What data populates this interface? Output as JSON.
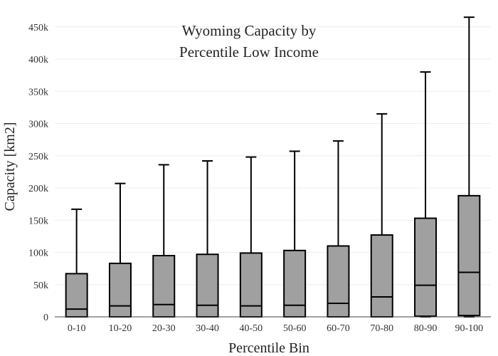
{
  "chart_data": {
    "type": "box",
    "title_lines": [
      "Wyoming Capacity by",
      "Percentile Low Income"
    ],
    "xlabel": "Percentile Bin",
    "ylabel": "Capacity  [km2]",
    "ylim": [
      0,
      465000
    ],
    "yticks": [
      0,
      50000,
      100000,
      150000,
      200000,
      250000,
      300000,
      350000,
      400000,
      450000
    ],
    "ytick_labels": [
      "0",
      "50k",
      "100k",
      "150k",
      "200k",
      "250k",
      "300k",
      "350k",
      "400k",
      "450k"
    ],
    "grid": true,
    "box_color": "#a0a0a0",
    "categories": [
      "0-10",
      "10-20",
      "20-30",
      "30-40",
      "40-50",
      "50-60",
      "60-70",
      "70-80",
      "80-90",
      "90-100"
    ],
    "boxes": [
      {
        "min": 0,
        "q1": 0,
        "median": 12000,
        "q3": 67000,
        "max": 167000
      },
      {
        "min": 0,
        "q1": 0,
        "median": 17000,
        "q3": 83000,
        "max": 207000
      },
      {
        "min": 0,
        "q1": 0,
        "median": 19000,
        "q3": 95000,
        "max": 236000
      },
      {
        "min": 0,
        "q1": 0,
        "median": 18000,
        "q3": 97000,
        "max": 242000
      },
      {
        "min": 0,
        "q1": 0,
        "median": 17000,
        "q3": 99000,
        "max": 248000
      },
      {
        "min": 0,
        "q1": 0,
        "median": 18000,
        "q3": 103000,
        "max": 257000
      },
      {
        "min": 0,
        "q1": 0,
        "median": 21000,
        "q3": 110000,
        "max": 273000
      },
      {
        "min": 0,
        "q1": 0,
        "median": 31000,
        "q3": 127000,
        "max": 315000
      },
      {
        "min": 0,
        "q1": 1000,
        "median": 49000,
        "q3": 153000,
        "max": 380000
      },
      {
        "min": 0,
        "q1": 2000,
        "median": 69000,
        "q3": 188000,
        "max": 465000
      }
    ]
  }
}
